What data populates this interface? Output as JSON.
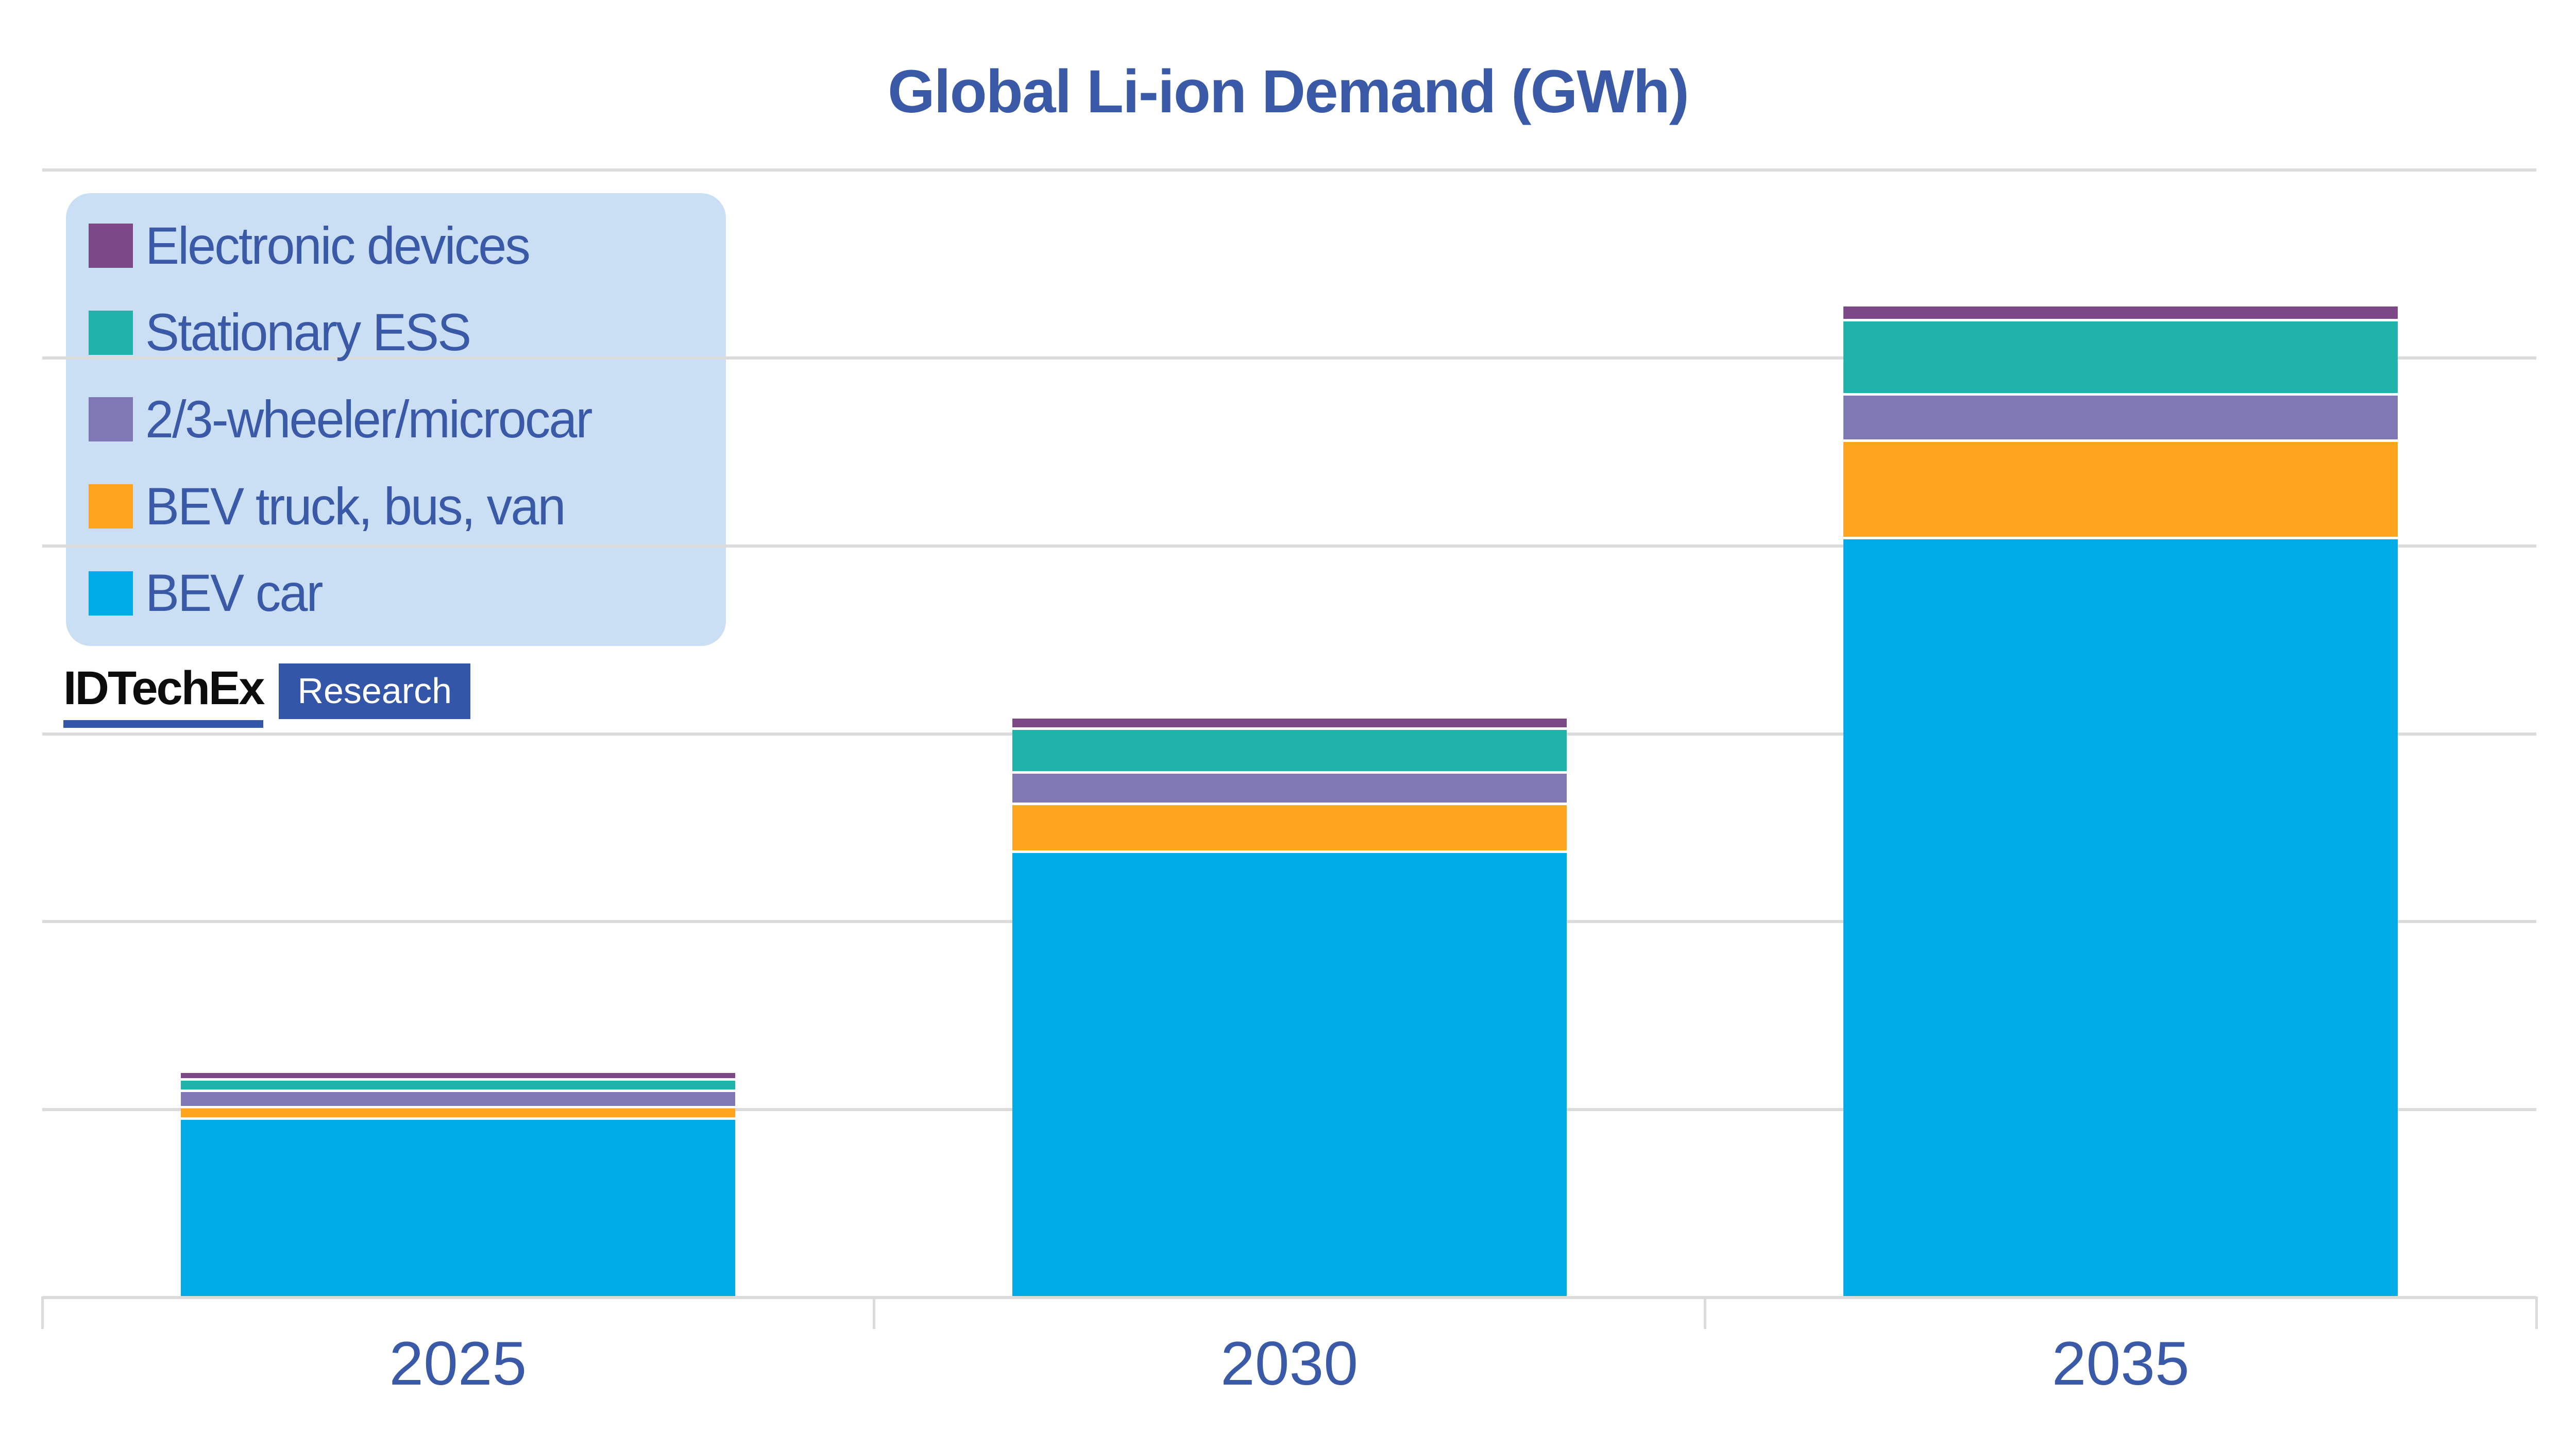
{
  "title": "Global Li-ion Demand (GWh)",
  "logo": {
    "brand": "IDTechEx",
    "suffix": "Research"
  },
  "x_axis": {
    "labels": [
      "2025",
      "2030",
      "2035"
    ]
  },
  "legend": {
    "position": "top-left",
    "background_color": "#cbdff4",
    "items": [
      {
        "label": "Electronic devices",
        "color": "#7d4886"
      },
      {
        "label": "Stationary ESS",
        "color": "#20b2ab"
      },
      {
        "label": "2/3-wheeler/microcar",
        "color": "#7e78b5"
      },
      {
        "label": "BEV truck, bus, van",
        "color": "#ffa41e"
      },
      {
        "label": "BEV car",
        "color": "#00ace8"
      }
    ]
  },
  "colors": {
    "text_blue": "#3a5aa8",
    "gridline": "#dbdbdb",
    "logo_blue": "#3356a8"
  },
  "chart_data": {
    "type": "bar",
    "stacked": true,
    "title": "Global Li-ion Demand (GWh)",
    "categories": [
      "2025",
      "2030",
      "2035"
    ],
    "series": [
      {
        "name": "BEV car",
        "color": "#00ace8",
        "values_gridline_units": [
          0.95,
          2.37,
          4.04
        ]
      },
      {
        "name": "BEV truck, bus, van",
        "color": "#ffa41e",
        "values_gridline_units": [
          0.062,
          0.256,
          0.518
        ]
      },
      {
        "name": "2/3-wheeler/microcar",
        "color": "#7e78b5",
        "values_gridline_units": [
          0.086,
          0.167,
          0.247
        ]
      },
      {
        "name": "Stationary ESS",
        "color": "#20b2ab",
        "values_gridline_units": [
          0.062,
          0.232,
          0.395
        ]
      },
      {
        "name": "Electronic devices",
        "color": "#7d4886",
        "values_gridline_units": [
          0.04,
          0.06,
          0.078
        ]
      }
    ],
    "totals_gridline_units": [
      1.2,
      3.09,
      5.28
    ],
    "y_axis": {
      "tick_labels_visible": false,
      "gridline_count": 7,
      "units_note": "Y axis has no tick labels in the image; values are expressed as multiples of one horizontal gridline interval (6 intervals span the plot height). Unit of measure per title: GWh."
    },
    "grid": "horizontal",
    "legend_position": "top-left",
    "series_stack_order": "first series is bottom of stack"
  }
}
